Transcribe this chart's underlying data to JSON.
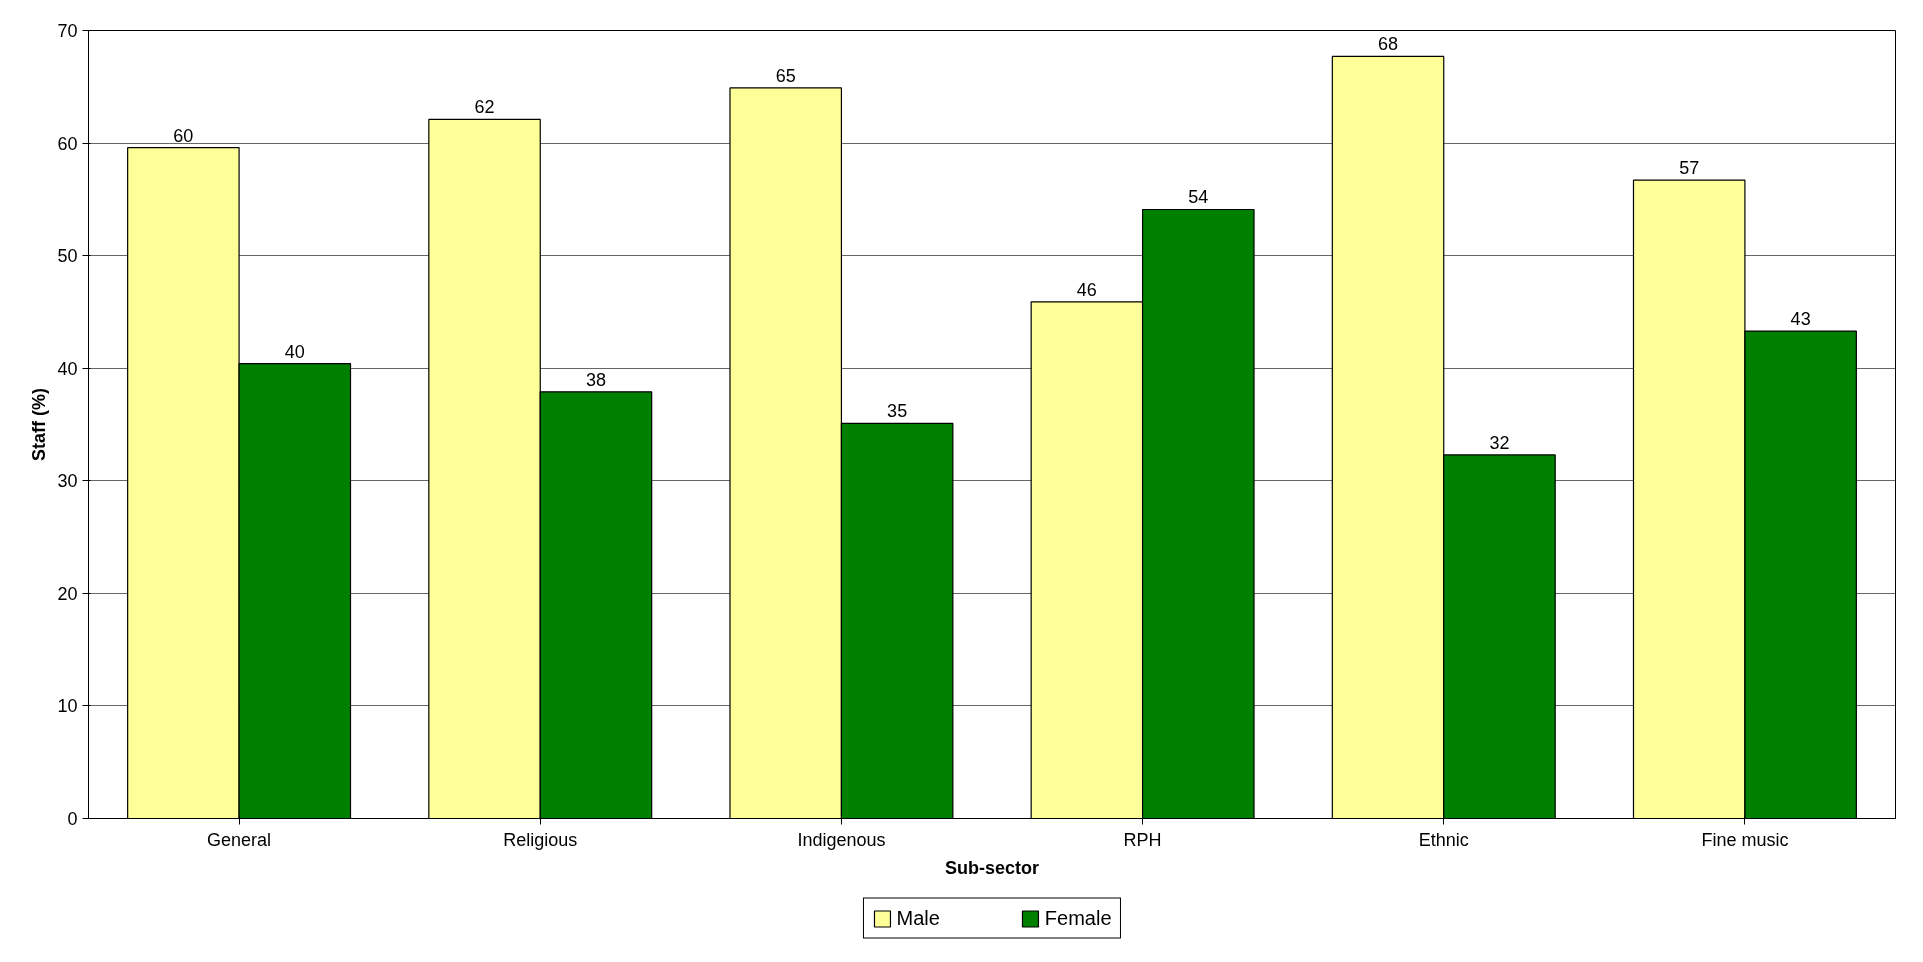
{
  "chart_data": {
    "type": "bar",
    "xlabel": "Sub-sector",
    "ylabel": "Staff (%)",
    "categories": [
      "General",
      "Religious",
      "Indigenous",
      "RPH",
      "Ethnic",
      "Fine music"
    ],
    "series": [
      {
        "name": "Male",
        "color": "#ffff99",
        "values": [
          59.6,
          62.1,
          64.9,
          45.9,
          67.7,
          56.7
        ],
        "value_labels": [
          "60",
          "62",
          "65",
          "46",
          "68",
          "57"
        ]
      },
      {
        "name": "Female",
        "color": "#008000",
        "values": [
          40.4,
          37.9,
          35.1,
          54.1,
          32.3,
          43.3
        ],
        "value_labels": [
          "40",
          "38",
          "35",
          "54",
          "32",
          "43"
        ]
      }
    ],
    "ylim": [
      0,
      70
    ],
    "yticks": [
      0,
      10,
      20,
      30,
      40,
      50,
      60,
      70
    ],
    "grid": "y",
    "legend": "bottom"
  }
}
